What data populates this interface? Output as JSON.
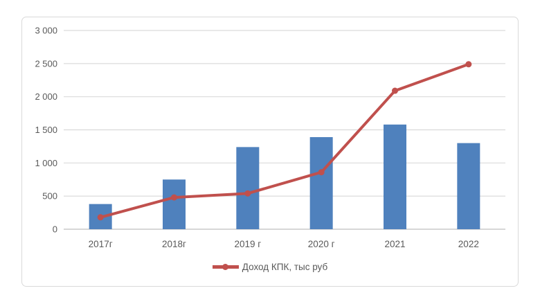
{
  "chart": {
    "colors": {
      "bar": "#4f81bd",
      "line": "#c0504d",
      "grid": "#d9d9d9",
      "axis_line": "#bfbfbf",
      "text": "#595959",
      "frame_border": "#d9d9d9",
      "background": "#ffffff"
    },
    "legend": {
      "label": "Доход КПК, тыс руб"
    }
  },
  "chart_data": {
    "type": "bar",
    "subtype": "combo-bar-line",
    "title": "",
    "xlabel": "",
    "ylabel": "",
    "categories": [
      "2017г",
      "2018г",
      "2019 г",
      "2020 г",
      "2021",
      "2022"
    ],
    "series": [
      {
        "name": "",
        "type": "bar",
        "color": "#4f81bd",
        "values": [
          380,
          750,
          1240,
          1390,
          1580,
          1300
        ]
      },
      {
        "name": "Доход КПК, тыс руб",
        "type": "line",
        "color": "#c0504d",
        "values": [
          180,
          480,
          540,
          860,
          2090,
          2490
        ]
      }
    ],
    "ylim": [
      0,
      3000
    ],
    "ytick_step": 500,
    "ytick_labels": [
      "0",
      "500",
      "1 000",
      "1 500",
      "2 000",
      "2 500",
      "3 000"
    ],
    "grid": true,
    "legend_position": "bottom-center"
  }
}
